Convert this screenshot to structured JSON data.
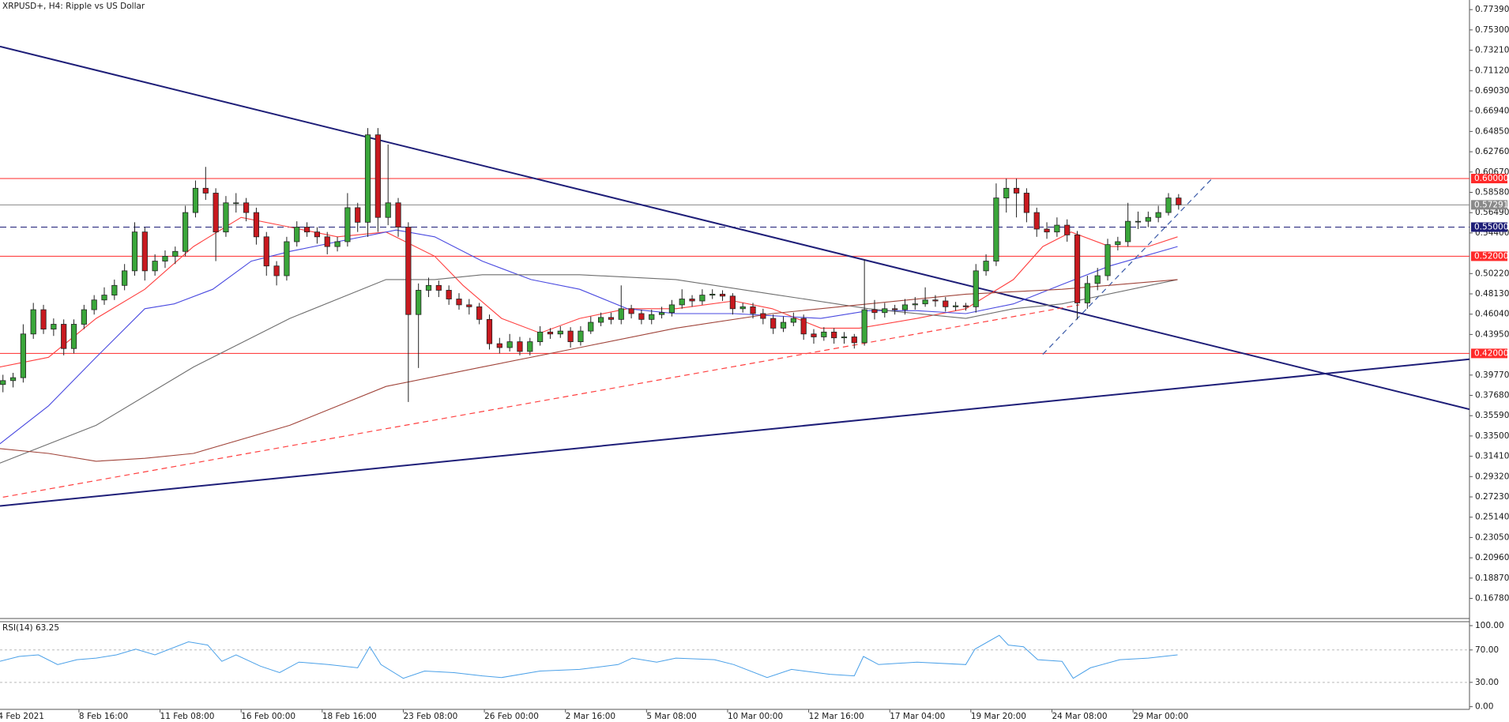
{
  "chart_data": {
    "type": "candlestick",
    "title": "XRPUSD+, H4:  Ripple vs US Dollar",
    "xlim": [
      -0.29,
      144.7
    ],
    "ylim": [
      0.1479,
      0.7838
    ],
    "xticks": [
      {
        "value": -0.5,
        "label": "4 Feb 2021"
      },
      {
        "value": 7.5,
        "label": "8 Feb 16:00"
      },
      {
        "value": 15.5,
        "label": "11 Feb 08:00"
      },
      {
        "value": 23.5,
        "label": "16 Feb 00:00"
      },
      {
        "value": 31.5,
        "label": "18 Feb 16:00"
      },
      {
        "value": 39.5,
        "label": "23 Feb 08:00"
      },
      {
        "value": 47.5,
        "label": "26 Feb 00:00"
      },
      {
        "value": 55.5,
        "label": "2 Mar 16:00"
      },
      {
        "value": 63.5,
        "label": "5 Mar 08:00"
      },
      {
        "value": 71.5,
        "label": "10 Mar 00:00"
      },
      {
        "value": 79.5,
        "label": "12 Mar 16:00"
      },
      {
        "value": 87.5,
        "label": "17 Mar 04:00"
      },
      {
        "value": 95.5,
        "label": "19 Mar 20:00"
      },
      {
        "value": 103.5,
        "label": "24 Mar 08:00"
      },
      {
        "value": 111.5,
        "label": "29 Mar 00:00"
      }
    ],
    "yticks": [
      {
        "value": 0.7739,
        "label": "0.77390"
      },
      {
        "value": 0.753,
        "label": "0.75300"
      },
      {
        "value": 0.7321,
        "label": "0.73210"
      },
      {
        "value": 0.7112,
        "label": "0.71120"
      },
      {
        "value": 0.6903,
        "label": "0.69030"
      },
      {
        "value": 0.6694,
        "label": "0.66940"
      },
      {
        "value": 0.6485,
        "label": "0.64850"
      },
      {
        "value": 0.6276,
        "label": "0.62760"
      },
      {
        "value": 0.6067,
        "label": "0.60670"
      },
      {
        "value": 0.5858,
        "label": "0.58580"
      },
      {
        "value": 0.5649,
        "label": "0.56490"
      },
      {
        "value": 0.544,
        "label": "0.54400"
      },
      {
        "value": 0.5022,
        "label": "0.50220"
      },
      {
        "value": 0.4813,
        "label": "0.48130"
      },
      {
        "value": 0.4604,
        "label": "0.46040"
      },
      {
        "value": 0.4395,
        "label": "0.43950"
      },
      {
        "value": 0.3977,
        "label": "0.39770"
      },
      {
        "value": 0.3768,
        "label": "0.37680"
      },
      {
        "value": 0.3559,
        "label": "0.35590"
      },
      {
        "value": 0.335,
        "label": "0.33500"
      },
      {
        "value": 0.3141,
        "label": "0.31410"
      },
      {
        "value": 0.2932,
        "label": "0.29320"
      },
      {
        "value": 0.2723,
        "label": "0.27230"
      },
      {
        "value": 0.2514,
        "label": "0.25140"
      },
      {
        "value": 0.2305,
        "label": "0.23050"
      },
      {
        "value": 0.2096,
        "label": "0.20960"
      },
      {
        "value": 0.1887,
        "label": "0.18870"
      },
      {
        "value": 0.1678,
        "label": "0.16780"
      }
    ],
    "up_color": "#3aa63a",
    "down_color": "#c8191f",
    "candles": [
      [
        0.388,
        0.398,
        0.38,
        0.392
      ],
      [
        0.392,
        0.4,
        0.385,
        0.395
      ],
      [
        0.395,
        0.45,
        0.39,
        0.44
      ],
      [
        0.44,
        0.472,
        0.435,
        0.465
      ],
      [
        0.465,
        0.47,
        0.44,
        0.445
      ],
      [
        0.445,
        0.456,
        0.438,
        0.45
      ],
      [
        0.45,
        0.455,
        0.418,
        0.425
      ],
      [
        0.425,
        0.455,
        0.42,
        0.45
      ],
      [
        0.45,
        0.47,
        0.445,
        0.465
      ],
      [
        0.465,
        0.48,
        0.46,
        0.475
      ],
      [
        0.475,
        0.488,
        0.47,
        0.48
      ],
      [
        0.48,
        0.496,
        0.475,
        0.49
      ],
      [
        0.49,
        0.512,
        0.485,
        0.505
      ],
      [
        0.505,
        0.555,
        0.5,
        0.545
      ],
      [
        0.545,
        0.55,
        0.495,
        0.505
      ],
      [
        0.505,
        0.522,
        0.5,
        0.515
      ],
      [
        0.515,
        0.526,
        0.508,
        0.52
      ],
      [
        0.52,
        0.53,
        0.512,
        0.525
      ],
      [
        0.525,
        0.572,
        0.52,
        0.565
      ],
      [
        0.565,
        0.598,
        0.56,
        0.59
      ],
      [
        0.59,
        0.612,
        0.578,
        0.585
      ],
      [
        0.585,
        0.59,
        0.515,
        0.545
      ],
      [
        0.545,
        0.582,
        0.54,
        0.575
      ],
      [
        0.575,
        0.585,
        0.565,
        0.575
      ],
      [
        0.575,
        0.58,
        0.556,
        0.565
      ],
      [
        0.565,
        0.57,
        0.532,
        0.54
      ],
      [
        0.54,
        0.545,
        0.5,
        0.51
      ],
      [
        0.51,
        0.515,
        0.49,
        0.5
      ],
      [
        0.5,
        0.54,
        0.495,
        0.535
      ],
      [
        0.535,
        0.556,
        0.53,
        0.55
      ],
      [
        0.55,
        0.555,
        0.54,
        0.545
      ],
      [
        0.545,
        0.55,
        0.533,
        0.54
      ],
      [
        0.54,
        0.545,
        0.522,
        0.53
      ],
      [
        0.53,
        0.54,
        0.525,
        0.535
      ],
      [
        0.535,
        0.585,
        0.53,
        0.57
      ],
      [
        0.57,
        0.575,
        0.545,
        0.555
      ],
      [
        0.555,
        0.652,
        0.54,
        0.645
      ],
      [
        0.645,
        0.652,
        0.545,
        0.56
      ],
      [
        0.56,
        0.635,
        0.552,
        0.575
      ],
      [
        0.575,
        0.58,
        0.54,
        0.55
      ],
      [
        0.55,
        0.555,
        0.37,
        0.46
      ],
      [
        0.46,
        0.492,
        0.405,
        0.485
      ],
      [
        0.485,
        0.498,
        0.478,
        0.49
      ],
      [
        0.49,
        0.495,
        0.478,
        0.485
      ],
      [
        0.485,
        0.49,
        0.47,
        0.476
      ],
      [
        0.476,
        0.482,
        0.465,
        0.47
      ],
      [
        0.47,
        0.476,
        0.46,
        0.468
      ],
      [
        0.468,
        0.472,
        0.45,
        0.455
      ],
      [
        0.455,
        0.46,
        0.424,
        0.43
      ],
      [
        0.43,
        0.436,
        0.42,
        0.426
      ],
      [
        0.426,
        0.44,
        0.422,
        0.432
      ],
      [
        0.432,
        0.437,
        0.418,
        0.422
      ],
      [
        0.422,
        0.436,
        0.418,
        0.432
      ],
      [
        0.432,
        0.448,
        0.428,
        0.442
      ],
      [
        0.442,
        0.446,
        0.435,
        0.44
      ],
      [
        0.44,
        0.448,
        0.436,
        0.443
      ],
      [
        0.443,
        0.447,
        0.426,
        0.432
      ],
      [
        0.432,
        0.448,
        0.428,
        0.443
      ],
      [
        0.443,
        0.458,
        0.44,
        0.452
      ],
      [
        0.452,
        0.462,
        0.448,
        0.457
      ],
      [
        0.457,
        0.462,
        0.45,
        0.455
      ],
      [
        0.455,
        0.49,
        0.45,
        0.466
      ],
      [
        0.466,
        0.47,
        0.456,
        0.461
      ],
      [
        0.461,
        0.465,
        0.45,
        0.455
      ],
      [
        0.455,
        0.465,
        0.45,
        0.46
      ],
      [
        0.46,
        0.468,
        0.456,
        0.462
      ],
      [
        0.462,
        0.475,
        0.458,
        0.47
      ],
      [
        0.47,
        0.486,
        0.466,
        0.476
      ],
      [
        0.476,
        0.48,
        0.468,
        0.474
      ],
      [
        0.474,
        0.486,
        0.47,
        0.48
      ],
      [
        0.48,
        0.486,
        0.476,
        0.481
      ],
      [
        0.481,
        0.485,
        0.474,
        0.479
      ],
      [
        0.479,
        0.482,
        0.46,
        0.466
      ],
      [
        0.466,
        0.472,
        0.462,
        0.468
      ],
      [
        0.468,
        0.472,
        0.456,
        0.461
      ],
      [
        0.461,
        0.466,
        0.45,
        0.456
      ],
      [
        0.456,
        0.46,
        0.44,
        0.446
      ],
      [
        0.446,
        0.458,
        0.442,
        0.452
      ],
      [
        0.452,
        0.462,
        0.448,
        0.456
      ],
      [
        0.456,
        0.46,
        0.434,
        0.44
      ],
      [
        0.44,
        0.445,
        0.43,
        0.437
      ],
      [
        0.437,
        0.447,
        0.433,
        0.442
      ],
      [
        0.442,
        0.446,
        0.43,
        0.436
      ],
      [
        0.436,
        0.442,
        0.43,
        0.437
      ],
      [
        0.437,
        0.44,
        0.425,
        0.431
      ],
      [
        0.431,
        0.517,
        0.428,
        0.465
      ],
      [
        0.465,
        0.475,
        0.455,
        0.462
      ],
      [
        0.462,
        0.472,
        0.457,
        0.466
      ],
      [
        0.466,
        0.47,
        0.46,
        0.465
      ],
      [
        0.465,
        0.476,
        0.46,
        0.47
      ],
      [
        0.47,
        0.478,
        0.465,
        0.471
      ],
      [
        0.471,
        0.488,
        0.468,
        0.475
      ],
      [
        0.475,
        0.48,
        0.468,
        0.474
      ],
      [
        0.474,
        0.478,
        0.463,
        0.468
      ],
      [
        0.468,
        0.473,
        0.464,
        0.469
      ],
      [
        0.469,
        0.472,
        0.464,
        0.468
      ],
      [
        0.468,
        0.512,
        0.462,
        0.505
      ],
      [
        0.505,
        0.522,
        0.5,
        0.515
      ],
      [
        0.515,
        0.595,
        0.51,
        0.58
      ],
      [
        0.58,
        0.6,
        0.565,
        0.59
      ],
      [
        0.59,
        0.6,
        0.56,
        0.585
      ],
      [
        0.585,
        0.59,
        0.555,
        0.565
      ],
      [
        0.565,
        0.57,
        0.54,
        0.548
      ],
      [
        0.548,
        0.555,
        0.538,
        0.545
      ],
      [
        0.545,
        0.56,
        0.54,
        0.552
      ],
      [
        0.552,
        0.558,
        0.535,
        0.542
      ],
      [
        0.542,
        0.546,
        0.455,
        0.472
      ],
      [
        0.472,
        0.5,
        0.466,
        0.492
      ],
      [
        0.492,
        0.508,
        0.485,
        0.5
      ],
      [
        0.5,
        0.538,
        0.495,
        0.532
      ],
      [
        0.532,
        0.54,
        0.526,
        0.535
      ],
      [
        0.535,
        0.575,
        0.53,
        0.556
      ],
      [
        0.556,
        0.566,
        0.548,
        0.556
      ],
      [
        0.556,
        0.566,
        0.55,
        0.56
      ],
      [
        0.56,
        0.572,
        0.555,
        0.565
      ],
      [
        0.565,
        0.585,
        0.562,
        0.58
      ],
      [
        0.58,
        0.584,
        0.568,
        0.573
      ]
    ],
    "overlays": [
      {
        "color": "#ff4040",
        "x": [
          -0.3,
          4.5,
          9.2,
          14,
          18.8,
          23.5,
          28.3,
          33,
          37.8,
          42.6,
          45.4,
          49.2,
          53,
          56.9,
          61.6,
          66.4,
          72.1,
          75.9,
          80.7,
          84.5,
          90.2,
          95,
          99.7,
          102.6,
          105.4,
          109.2,
          113,
          115.9
        ],
        "values": [
          0.406,
          0.416,
          0.456,
          0.486,
          0.53,
          0.56,
          0.55,
          0.54,
          0.545,
          0.52,
          0.49,
          0.456,
          0.441,
          0.456,
          0.466,
          0.466,
          0.474,
          0.466,
          0.446,
          0.446,
          0.456,
          0.466,
          0.496,
          0.53,
          0.545,
          0.53,
          0.53,
          0.54
        ]
      },
      {
        "color": "#4a4ae0",
        "x": [
          -0.3,
          4.5,
          9.2,
          14,
          16.9,
          20.7,
          24.5,
          28.3,
          33,
          38.8,
          42.6,
          47.3,
          52.1,
          56.9,
          61.6,
          66.4,
          72.1,
          80.7,
          85.4,
          90.2,
          95,
          99.7,
          104.5,
          109.2,
          115.9
        ],
        "values": [
          0.327,
          0.366,
          0.416,
          0.466,
          0.471,
          0.486,
          0.515,
          0.525,
          0.535,
          0.547,
          0.54,
          0.515,
          0.496,
          0.486,
          0.466,
          0.461,
          0.461,
          0.456,
          0.464,
          0.464,
          0.461,
          0.471,
          0.491,
          0.51,
          0.53
        ]
      },
      {
        "color": "#6e6e6e",
        "x": [
          -0.3,
          9.2,
          18.8,
          28.3,
          37.8,
          42.6,
          47.3,
          56.9,
          66.4,
          75.9,
          85.4,
          95,
          99.7,
          104.5,
          115.9
        ],
        "values": [
          0.307,
          0.346,
          0.406,
          0.456,
          0.496,
          0.496,
          0.501,
          0.501,
          0.496,
          0.481,
          0.466,
          0.456,
          0.466,
          0.471,
          0.496
        ]
      },
      {
        "color": "#a0443a",
        "x": [
          -0.3,
          4.5,
          9.2,
          14,
          18.8,
          28.3,
          37.8,
          47.3,
          56.9,
          66.4,
          75.9,
          85.4,
          95,
          104.5,
          115.9
        ],
        "values": [
          0.322,
          0.317,
          0.309,
          0.312,
          0.317,
          0.346,
          0.386,
          0.406,
          0.426,
          0.446,
          0.461,
          0.471,
          0.481,
          0.486,
          0.496
        ]
      }
    ],
    "trendlines": [
      {
        "color": "#1e1e78",
        "style": "solid",
        "x": [
          -0.29,
          144.7
        ],
        "values": [
          0.736,
          0.3625
        ]
      },
      {
        "color": "#1e1e78",
        "style": "solid",
        "x": [
          -0.29,
          144.7
        ],
        "values": [
          0.263,
          0.414
        ]
      },
      {
        "color": "#ff4040",
        "style": "dashed",
        "x": [
          0,
          106.2
        ],
        "values": [
          0.272,
          0.47
        ]
      },
      {
        "color": "#3a5aa8",
        "style": "dashed",
        "x": [
          102.6,
          119.2
        ],
        "values": [
          0.419,
          0.599
        ]
      }
    ],
    "levels": [
      {
        "value": 0.6,
        "label": "0.60000",
        "color": "#ff2a2a",
        "style": "solid"
      },
      {
        "value": 0.57291,
        "label": "0.57291",
        "color": "#8a8a8a",
        "style": "solid"
      },
      {
        "value": 0.55,
        "label": "0.55000",
        "color": "#1e1e78",
        "style": "dashed"
      },
      {
        "value": 0.52,
        "label": "0.52000",
        "color": "#ff2a2a",
        "style": "solid"
      },
      {
        "value": 0.42,
        "label": "0.42000",
        "color": "#ff2a2a",
        "style": "solid"
      }
    ],
    "rsi": {
      "title": "RSI(14) 63.25",
      "color": "#4aa0e8",
      "ylim": [
        -3.3,
        104.9
      ],
      "yticks": [
        {
          "value": 100,
          "label": "100.00"
        },
        {
          "value": 70,
          "label": "70.00"
        },
        {
          "value": 30,
          "label": "30.00"
        },
        {
          "value": 0,
          "label": "0.00"
        }
      ],
      "levels": [
        70,
        30
      ],
      "x": [
        -0.3,
        1.6,
        3.5,
        5.4,
        7.3,
        9.2,
        11.2,
        13.1,
        15,
        18.3,
        20.2,
        21.6,
        23,
        25.4,
        27.3,
        29.2,
        32.1,
        35,
        36.2,
        37.3,
        39.5,
        41.6,
        44.5,
        47.3,
        49.2,
        53,
        56.9,
        60.7,
        62.1,
        64.5,
        66.4,
        70.2,
        72.1,
        75.4,
        77.8,
        81.6,
        84,
        84.9,
        86.4,
        90.2,
        95,
        95.9,
        98.3,
        99.2,
        100.7,
        102.1,
        104.5,
        105.6,
        107.3,
        110.2,
        113,
        115.9
      ],
      "values": [
        56,
        62,
        64,
        52,
        58,
        60,
        64,
        71,
        64,
        80,
        76,
        56,
        64,
        50,
        42,
        55,
        52,
        48,
        74,
        52,
        35,
        44,
        42,
        38,
        36,
        44,
        46,
        52,
        60,
        55,
        60,
        58,
        52,
        36,
        46,
        40,
        38,
        62,
        52,
        55,
        52,
        71,
        88,
        76,
        74,
        58,
        56,
        35,
        48,
        58,
        60,
        64
      ]
    }
  }
}
